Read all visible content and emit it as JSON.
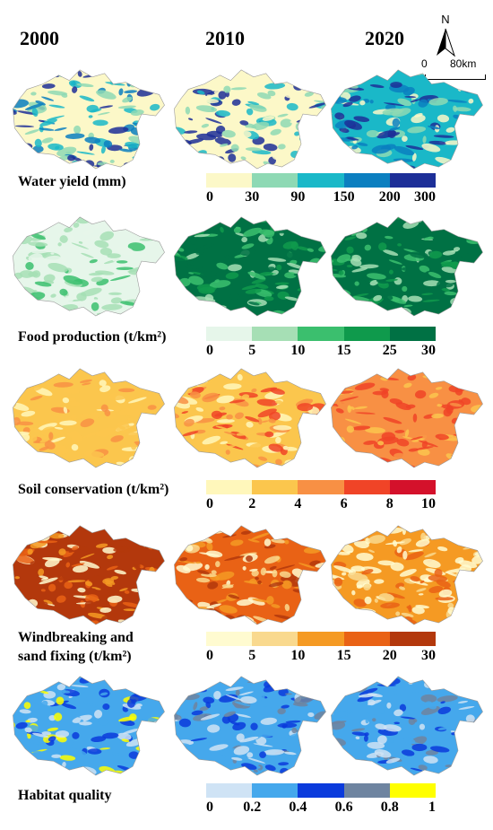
{
  "years": [
    "2000",
    "2010",
    "2020"
  ],
  "scale": {
    "zero": "0",
    "dist": "80km",
    "north": "N"
  },
  "rows": [
    {
      "label_lines": [
        "Water yield (mm)"
      ],
      "ticks": [
        "0",
        "30",
        "90",
        "150",
        "200",
        "300"
      ],
      "colors": [
        "#fcf8c8",
        "#8ed9b4",
        "#1ab8c8",
        "#0b7fc0",
        "#1d2f98"
      ]
    },
    {
      "label_lines": [
        "Food production (t/km²)"
      ],
      "ticks": [
        "0",
        "5",
        "10",
        "15",
        "25",
        "30"
      ],
      "colors": [
        "#e6f6ea",
        "#a6dfb5",
        "#3bbf6e",
        "#0f9a4c",
        "#007144"
      ]
    },
    {
      "label_lines": [
        "Soil conservation (t/km²)"
      ],
      "ticks": [
        "0",
        "2",
        "4",
        "6",
        "8",
        "10"
      ],
      "colors": [
        "#fff7bb",
        "#fbc64d",
        "#f89044",
        "#f04427",
        "#d4112b"
      ]
    },
    {
      "label_lines": [
        "Windbreaking and",
        "sand fixing (t/km²)"
      ],
      "ticks": [
        "0",
        "5",
        "10",
        "15",
        "20",
        "30"
      ],
      "colors": [
        "#fffbd0",
        "#f9d98e",
        "#f59a23",
        "#e96215",
        "#b3380c"
      ]
    },
    {
      "label_lines": [
        "Habitat quality"
      ],
      "ticks": [
        "0",
        "0.2",
        "0.4",
        "0.6",
        "0.8",
        "1"
      ],
      "colors": [
        "#cfe3f5",
        "#45a8ec",
        "#0b3bdc",
        "#6e84a0",
        "#ffff00"
      ]
    }
  ]
}
